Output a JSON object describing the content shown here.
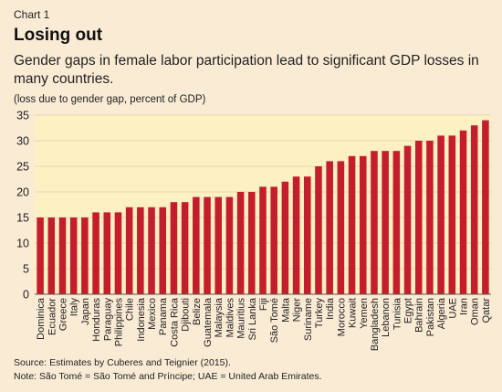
{
  "header": {
    "chart_label": "Chart 1",
    "title": "Losing out",
    "subtitle": "Gender gaps in female labor participation lead to significant GDP losses in many countries.",
    "unit_note": "(loss due to gender gap, percent of GDP)"
  },
  "footer": {
    "source": "Source: Estimates by Cuberes and Teignier (2015).",
    "note": "Note: São Tomé = São Tomé and Príncipe; UAE = United Arab Emirates."
  },
  "colors": {
    "page_background": "#faebd5",
    "plot_background": "#fdf1c4",
    "bar": "#c41e2c"
  },
  "chart_data": {
    "type": "bar",
    "title": "Losing out",
    "xlabel": "",
    "ylabel": "(loss due to gender gap, percent of GDP)",
    "ylim": [
      0,
      35
    ],
    "yticks": [
      0,
      5,
      10,
      15,
      20,
      25,
      30,
      35
    ],
    "grid": "horizontal",
    "legend": "none",
    "categories": [
      "Dominica",
      "Ecuador",
      "Greece",
      "Italy",
      "Japan",
      "Honduras",
      "Paraguay",
      "Philippines",
      "Chile",
      "Indonesia",
      "Mexico",
      "Panama",
      "Costa Rica",
      "Djibouti",
      "Belize",
      "Guatemala",
      "Malaysia",
      "Maldives",
      "Mauritius",
      "Sri Lanka",
      "Fiji",
      "São Tomé",
      "Malta",
      "Niger",
      "Suriname",
      "Turkey",
      "India",
      "Morocco",
      "Kuwait",
      "Yemen",
      "Bangladesh",
      "Lebanon",
      "Tunisia",
      "Egypt",
      "Bahrain",
      "Pakistan",
      "Algeria",
      "UAE",
      "Iran",
      "Oman",
      "Qatar"
    ],
    "values": [
      15,
      15,
      15,
      15,
      15,
      16,
      16,
      16,
      17,
      17,
      17,
      17,
      18,
      18,
      19,
      19,
      19,
      19,
      20,
      20,
      21,
      21,
      22,
      23,
      23,
      25,
      26,
      26,
      27,
      27,
      28,
      28,
      28,
      29,
      30,
      30,
      31,
      31,
      32,
      33,
      34
    ]
  }
}
